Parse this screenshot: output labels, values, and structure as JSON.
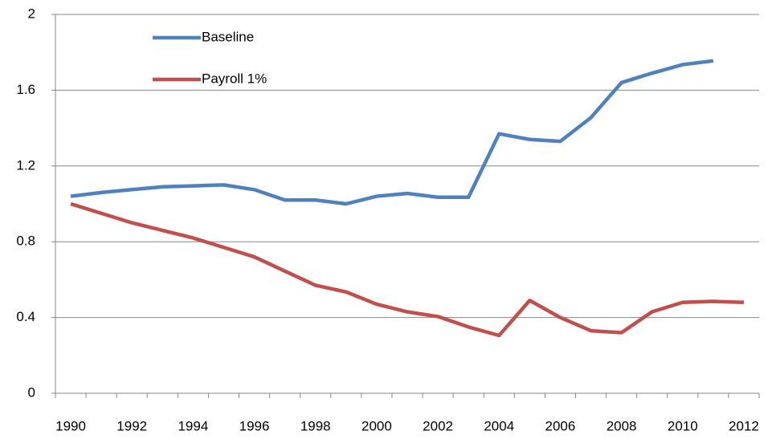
{
  "chart_data": {
    "type": "line",
    "categories": [
      "1990",
      null,
      "1992",
      null,
      "1994",
      null,
      "1996",
      null,
      "1998",
      null,
      "2000",
      null,
      "2002",
      null,
      "2004",
      null,
      "2006",
      null,
      "2008",
      null,
      "2010",
      null,
      "2012"
    ],
    "series": [
      {
        "name": "Baseline",
        "color": "#4f81bd",
        "values": [
          1.04,
          1.06,
          1.075,
          1.09,
          1.095,
          1.1,
          1.075,
          1.02,
          1.02,
          1.0,
          1.04,
          1.055,
          1.035,
          1.035,
          1.37,
          1.34,
          1.33,
          1.455,
          1.64,
          1.69,
          1.735,
          1.755,
          null
        ]
      },
      {
        "name": "Payroll 1%",
        "color": "#c0504d",
        "values": [
          1.0,
          0.95,
          0.9,
          0.86,
          0.82,
          0.77,
          0.72,
          0.645,
          0.57,
          0.535,
          0.47,
          0.43,
          0.405,
          0.35,
          0.305,
          0.49,
          0.4,
          0.33,
          0.32,
          0.43,
          0.48,
          0.485,
          0.48
        ]
      }
    ],
    "ylim": [
      0,
      2
    ],
    "yticks": [
      0,
      0.4,
      0.8,
      1.2,
      1.6,
      2
    ],
    "grid": true,
    "legend": "top-left"
  }
}
